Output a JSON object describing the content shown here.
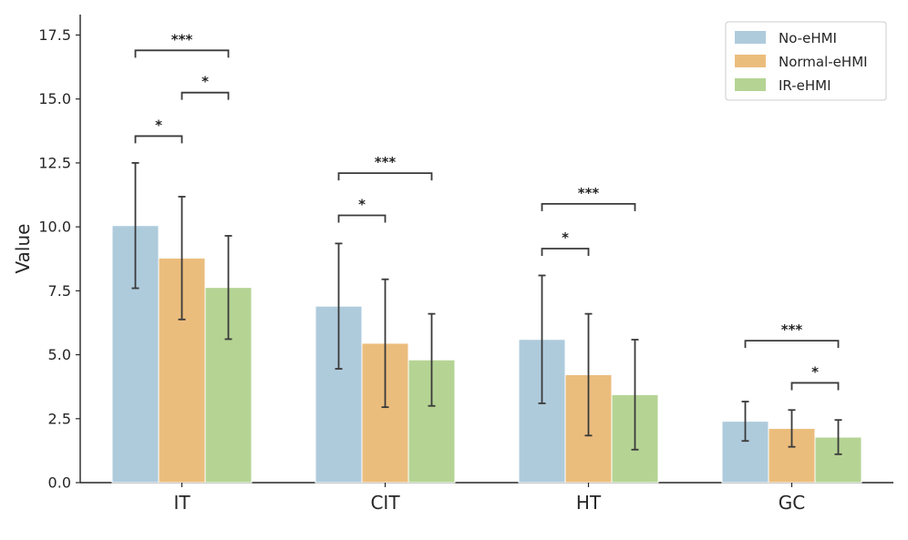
{
  "chart_data": {
    "type": "bar",
    "title": "",
    "xlabel": "",
    "ylabel": "Value",
    "ylim": [
      0,
      18.3
    ],
    "yticks": [
      "0.0",
      "2.5",
      "5.0",
      "7.5",
      "10.0",
      "12.5",
      "15.0",
      "17.5"
    ],
    "ytick_values": [
      0,
      2.5,
      5,
      7.5,
      10,
      12.5,
      15,
      17.5
    ],
    "grid": false,
    "legend_position": "top-right",
    "categories": [
      "IT",
      "CIT",
      "HT",
      "GC"
    ],
    "series": [
      {
        "name": "No-eHMI",
        "color": "#aecbdc",
        "values": [
          10.05,
          6.9,
          5.6,
          2.4
        ],
        "errors": [
          2.45,
          2.45,
          2.5,
          0.77
        ]
      },
      {
        "name": "Normal-eHMI",
        "color": "#ebbd7d",
        "values": [
          8.78,
          5.45,
          4.22,
          2.12
        ],
        "errors": [
          2.4,
          2.5,
          2.38,
          0.72
        ]
      },
      {
        "name": "IR-eHMI",
        "color": "#b5d494",
        "values": [
          7.63,
          4.8,
          3.44,
          1.78
        ],
        "errors": [
          2.02,
          1.8,
          2.15,
          0.67
        ]
      }
    ],
    "significance": [
      {
        "category": "IT",
        "from": 0,
        "to": 2,
        "level": 16.9,
        "label": "***"
      },
      {
        "category": "IT",
        "from": 1,
        "to": 2,
        "level": 15.25,
        "label": "*"
      },
      {
        "category": "IT",
        "from": 0,
        "to": 1,
        "level": 13.55,
        "label": "*"
      },
      {
        "category": "CIT",
        "from": 0,
        "to": 2,
        "level": 12.1,
        "label": "***"
      },
      {
        "category": "CIT",
        "from": 0,
        "to": 1,
        "level": 10.45,
        "label": "*"
      },
      {
        "category": "HT",
        "from": 0,
        "to": 2,
        "level": 10.9,
        "label": "***"
      },
      {
        "category": "HT",
        "from": 0,
        "to": 1,
        "level": 9.15,
        "label": "*"
      },
      {
        "category": "GC",
        "from": 0,
        "to": 2,
        "level": 5.55,
        "label": "***"
      },
      {
        "category": "GC",
        "from": 1,
        "to": 2,
        "level": 3.9,
        "label": "*"
      }
    ]
  }
}
